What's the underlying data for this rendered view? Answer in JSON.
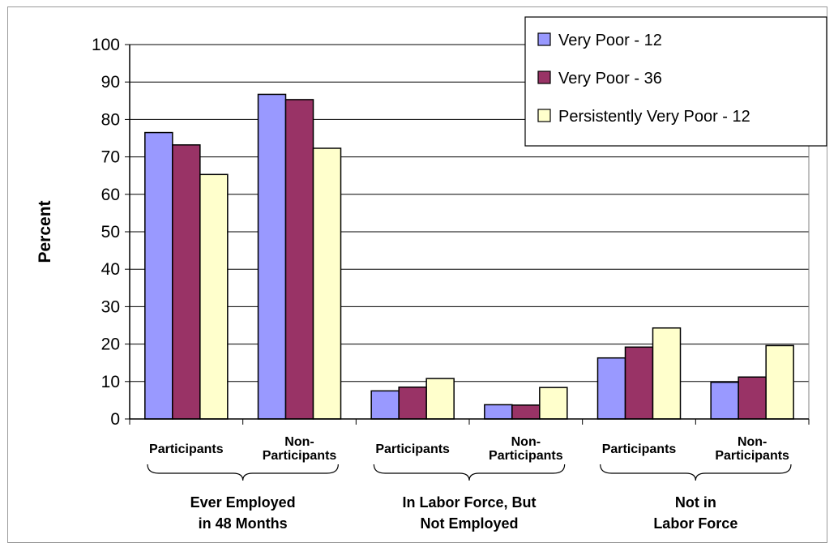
{
  "chart_data": {
    "type": "bar",
    "title": "",
    "xlabel": "",
    "ylabel": "Percent",
    "ylim": [
      0,
      100
    ],
    "yticks": [
      0,
      10,
      20,
      30,
      40,
      50,
      60,
      70,
      80,
      90,
      100
    ],
    "grid": true,
    "legend_position": "top-right",
    "categories": [
      {
        "lines": [
          "Participants"
        ]
      },
      {
        "lines": [
          "Non-",
          "Participants"
        ]
      },
      {
        "lines": [
          "Participants"
        ]
      },
      {
        "lines": [
          "Non-",
          "Participants"
        ]
      },
      {
        "lines": [
          "Participants"
        ]
      },
      {
        "lines": [
          "Non-",
          "Participants"
        ]
      }
    ],
    "groups": [
      {
        "lines": [
          "Ever Employed",
          "in 48 Months"
        ]
      },
      {
        "lines": [
          "In Labor Force, But",
          "Not Employed"
        ]
      },
      {
        "lines": [
          "Not in",
          "Labor Force"
        ]
      }
    ],
    "series": [
      {
        "name": "Very Poor - 12",
        "color": "#9999ff",
        "values": [
          76.5,
          86.7,
          7.5,
          3.8,
          16.3,
          9.8
        ]
      },
      {
        "name": "Very Poor - 36",
        "color": "#993366",
        "values": [
          73.2,
          85.3,
          8.5,
          3.7,
          19.2,
          11.2
        ]
      },
      {
        "name": "Persistently Very Poor - 12",
        "color": "#ffffcc",
        "values": [
          65.3,
          72.3,
          10.8,
          8.4,
          24.3,
          19.6
        ]
      }
    ]
  }
}
